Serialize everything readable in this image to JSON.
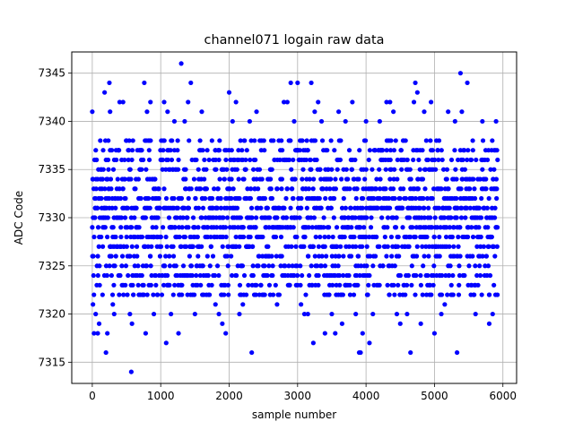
{
  "chart_data": {
    "type": "scatter",
    "title": "channel071 logain raw data",
    "xlabel": "sample number",
    "ylabel": "ADC Code",
    "xlim": [
      -300,
      6200
    ],
    "ylim": [
      7312.8,
      7347.2
    ],
    "x_ticks": [
      0,
      1000,
      2000,
      3000,
      4000,
      5000,
      6000
    ],
    "y_ticks": [
      7315,
      7320,
      7325,
      7330,
      7335,
      7340,
      7345
    ],
    "x_tick_labels": [
      "0",
      "1000",
      "2000",
      "3000",
      "4000",
      "5000",
      "6000"
    ],
    "y_tick_labels": [
      "7315",
      "7320",
      "7325",
      "7330",
      "7335",
      "7340",
      "7345"
    ],
    "grid": true,
    "marker_color": "#0000ff",
    "sample_count": 5925,
    "main_band": [
      7322,
      7338
    ],
    "series": [
      {
        "points": [
          [
            0,
            7341
          ],
          [
            10,
            7321
          ],
          [
            25,
            7318
          ],
          [
            50,
            7320
          ],
          [
            80,
            7318
          ],
          [
            100,
            7319
          ],
          [
            150,
            7322
          ],
          [
            180,
            7343
          ],
          [
            200,
            7316
          ],
          [
            220,
            7318
          ],
          [
            250,
            7344
          ],
          [
            260,
            7341
          ],
          [
            300,
            7321
          ],
          [
            320,
            7320
          ],
          [
            400,
            7342
          ],
          [
            450,
            7342
          ],
          [
            500,
            7338
          ],
          [
            550,
            7320
          ],
          [
            570,
            7314
          ],
          [
            580,
            7319
          ],
          [
            600,
            7322
          ],
          [
            700,
            7322
          ],
          [
            760,
            7344
          ],
          [
            780,
            7318
          ],
          [
            800,
            7341
          ],
          [
            850,
            7342
          ],
          [
            900,
            7320
          ],
          [
            950,
            7322
          ],
          [
            1000,
            7336
          ],
          [
            1050,
            7342
          ],
          [
            1080,
            7317
          ],
          [
            1100,
            7341
          ],
          [
            1150,
            7320
          ],
          [
            1200,
            7340
          ],
          [
            1260,
            7318
          ],
          [
            1300,
            7346
          ],
          [
            1350,
            7340
          ],
          [
            1400,
            7342
          ],
          [
            1440,
            7344
          ],
          [
            1500,
            7320
          ],
          [
            1600,
            7341
          ],
          [
            1700,
            7322
          ],
          [
            1800,
            7321
          ],
          [
            1850,
            7320
          ],
          [
            1900,
            7319
          ],
          [
            1950,
            7318
          ],
          [
            2000,
            7343
          ],
          [
            2050,
            7340
          ],
          [
            2100,
            7342
          ],
          [
            2150,
            7320
          ],
          [
            2200,
            7321
          ],
          [
            2250,
            7322
          ],
          [
            2300,
            7340
          ],
          [
            2330,
            7316
          ],
          [
            2400,
            7341
          ],
          [
            2500,
            7322
          ],
          [
            2600,
            7322
          ],
          [
            2700,
            7321
          ],
          [
            2800,
            7342
          ],
          [
            2850,
            7342
          ],
          [
            2900,
            7344
          ],
          [
            2950,
            7340
          ],
          [
            3000,
            7344
          ],
          [
            3050,
            7321
          ],
          [
            3100,
            7320
          ],
          [
            3150,
            7320
          ],
          [
            3200,
            7344
          ],
          [
            3230,
            7317
          ],
          [
            3250,
            7341
          ],
          [
            3300,
            7342
          ],
          [
            3350,
            7340
          ],
          [
            3400,
            7318
          ],
          [
            3500,
            7320
          ],
          [
            3550,
            7318
          ],
          [
            3600,
            7341
          ],
          [
            3650,
            7319
          ],
          [
            3700,
            7340
          ],
          [
            3800,
            7342
          ],
          [
            3850,
            7320
          ],
          [
            3900,
            7316
          ],
          [
            3920,
            7316
          ],
          [
            3950,
            7318
          ],
          [
            4000,
            7340
          ],
          [
            4050,
            7317
          ],
          [
            4100,
            7320
          ],
          [
            4200,
            7340
          ],
          [
            4300,
            7342
          ],
          [
            4350,
            7342
          ],
          [
            4400,
            7341
          ],
          [
            4450,
            7320
          ],
          [
            4500,
            7319
          ],
          [
            4600,
            7320
          ],
          [
            4650,
            7316
          ],
          [
            4700,
            7342
          ],
          [
            4720,
            7344
          ],
          [
            4750,
            7343
          ],
          [
            4800,
            7319
          ],
          [
            4850,
            7341
          ],
          [
            4950,
            7342
          ],
          [
            5000,
            7318
          ],
          [
            5100,
            7320
          ],
          [
            5150,
            7321
          ],
          [
            5200,
            7341
          ],
          [
            5300,
            7340
          ],
          [
            5330,
            7316
          ],
          [
            5380,
            7345
          ],
          [
            5400,
            7341
          ],
          [
            5480,
            7344
          ],
          [
            5600,
            7320
          ],
          [
            5700,
            7340
          ],
          [
            5800,
            7319
          ],
          [
            5850,
            7320
          ],
          [
            5900,
            7340
          ],
          [
            5920,
            7322
          ]
        ]
      }
    ]
  }
}
